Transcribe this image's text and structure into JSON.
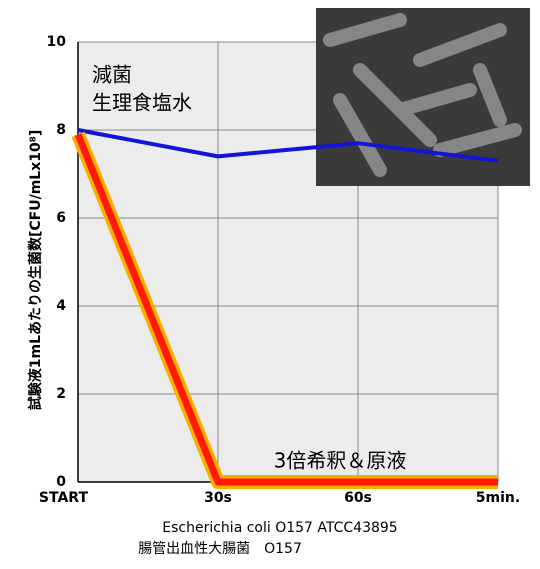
{
  "chart_data": {
    "type": "line",
    "categories": [
      "START",
      "30s",
      "60s",
      "5min."
    ],
    "series": [
      {
        "labels": [
          "減菌",
          "生理食塩水"
        ],
        "color": "#1414d8",
        "values": [
          8.0,
          7.4,
          7.7,
          7.3
        ]
      },
      {
        "labels": [
          "3倍希釈＆原液"
        ],
        "color": "#ff1a00",
        "values": [
          7.9,
          0,
          0,
          0
        ]
      }
    ],
    "ylim": [
      0,
      10
    ],
    "yticks": [
      0,
      2,
      4,
      6,
      8,
      10
    ],
    "grid": true,
    "y_label": "試験液1mLあたりの生菌数[CFU/mLx10⁸]",
    "x_label": [
      "Escherichia coli O157 ATCC43895",
      "腸管出血性大腸菌　O157"
    ]
  }
}
